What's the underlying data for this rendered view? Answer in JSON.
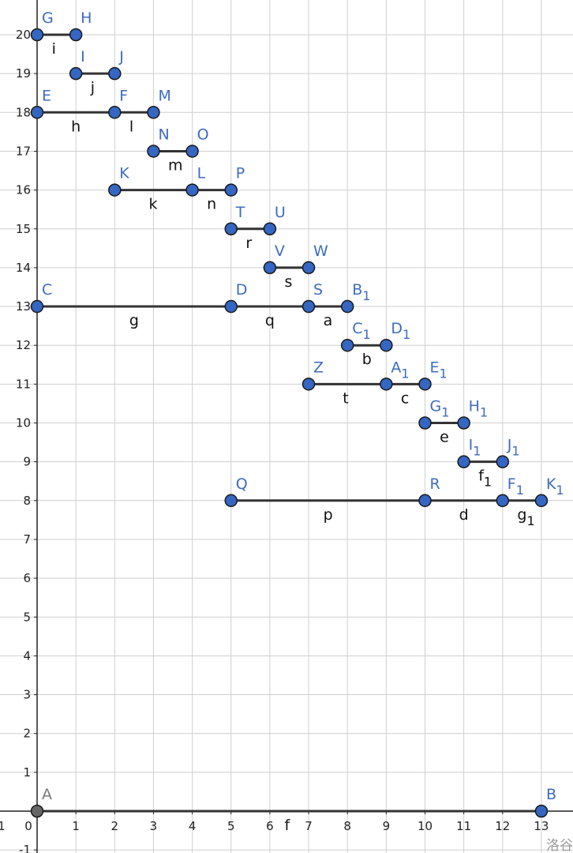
{
  "colors": {
    "grid": "#cfcfcf",
    "axis": "#222222",
    "segment": "#333333",
    "point": "#3466c2",
    "point_gray": "#666666",
    "point_label": "#3d6cc0",
    "segment_label": "#111111"
  },
  "axes": {
    "xlim": [
      -1,
      13.6
    ],
    "ylim": [
      -1.1,
      20.9
    ],
    "x_ticks": [
      0,
      1,
      2,
      3,
      4,
      5,
      6,
      7,
      8,
      9,
      10,
      11,
      12,
      13
    ],
    "y_ticks": [
      -1,
      1,
      2,
      3,
      4,
      5,
      6,
      7,
      8,
      9,
      10,
      11,
      12,
      13,
      14,
      15,
      16,
      17,
      18,
      19,
      20
    ],
    "grid": true
  },
  "points": [
    {
      "name": "A",
      "sub": "",
      "x": 0,
      "y": 0,
      "color": "gray"
    },
    {
      "name": "B",
      "sub": "",
      "x": 13,
      "y": 0
    },
    {
      "name": "G",
      "sub": "",
      "x": 0,
      "y": 20
    },
    {
      "name": "H",
      "sub": "",
      "x": 1,
      "y": 20
    },
    {
      "name": "I",
      "sub": "",
      "x": 1,
      "y": 19
    },
    {
      "name": "J",
      "sub": "",
      "x": 2,
      "y": 19
    },
    {
      "name": "E",
      "sub": "",
      "x": 0,
      "y": 18
    },
    {
      "name": "F",
      "sub": "",
      "x": 2,
      "y": 18
    },
    {
      "name": "M",
      "sub": "",
      "x": 3,
      "y": 18
    },
    {
      "name": "N",
      "sub": "",
      "x": 3,
      "y": 17
    },
    {
      "name": "O",
      "sub": "",
      "x": 4,
      "y": 17
    },
    {
      "name": "K",
      "sub": "",
      "x": 2,
      "y": 16
    },
    {
      "name": "L",
      "sub": "",
      "x": 4,
      "y": 16
    },
    {
      "name": "P",
      "sub": "",
      "x": 5,
      "y": 16
    },
    {
      "name": "T",
      "sub": "",
      "x": 5,
      "y": 15
    },
    {
      "name": "U",
      "sub": "",
      "x": 6,
      "y": 15
    },
    {
      "name": "V",
      "sub": "",
      "x": 6,
      "y": 14
    },
    {
      "name": "W",
      "sub": "",
      "x": 7,
      "y": 14
    },
    {
      "name": "C",
      "sub": "",
      "x": 0,
      "y": 13
    },
    {
      "name": "D",
      "sub": "",
      "x": 5,
      "y": 13
    },
    {
      "name": "S",
      "sub": "",
      "x": 7,
      "y": 13
    },
    {
      "name": "B",
      "sub": "1",
      "x": 8,
      "y": 13
    },
    {
      "name": "C",
      "sub": "1",
      "x": 8,
      "y": 12
    },
    {
      "name": "D",
      "sub": "1",
      "x": 9,
      "y": 12
    },
    {
      "name": "Z",
      "sub": "",
      "x": 7,
      "y": 11
    },
    {
      "name": "A",
      "sub": "1",
      "x": 9,
      "y": 11
    },
    {
      "name": "E",
      "sub": "1",
      "x": 10,
      "y": 11
    },
    {
      "name": "G",
      "sub": "1",
      "x": 10,
      "y": 10
    },
    {
      "name": "H",
      "sub": "1",
      "x": 11,
      "y": 10
    },
    {
      "name": "I",
      "sub": "1",
      "x": 11,
      "y": 9
    },
    {
      "name": "J",
      "sub": "1",
      "x": 12,
      "y": 9
    },
    {
      "name": "Q",
      "sub": "",
      "x": 5,
      "y": 8
    },
    {
      "name": "R",
      "sub": "",
      "x": 10,
      "y": 8
    },
    {
      "name": "F",
      "sub": "1",
      "x": 12,
      "y": 8
    },
    {
      "name": "K",
      "sub": "1",
      "x": 13,
      "y": 8
    }
  ],
  "segments": [
    {
      "name": "f",
      "sub": "",
      "from": [
        0,
        0
      ],
      "to": [
        13,
        0
      ]
    },
    {
      "name": "i",
      "sub": "",
      "from": [
        0,
        20
      ],
      "to": [
        1,
        20
      ]
    },
    {
      "name": "j",
      "sub": "",
      "from": [
        1,
        19
      ],
      "to": [
        2,
        19
      ]
    },
    {
      "name": "h",
      "sub": "",
      "from": [
        0,
        18
      ],
      "to": [
        2,
        18
      ]
    },
    {
      "name": "l",
      "sub": "",
      "from": [
        2,
        18
      ],
      "to": [
        3,
        18
      ]
    },
    {
      "name": "m",
      "sub": "",
      "from": [
        3,
        17
      ],
      "to": [
        4,
        17
      ]
    },
    {
      "name": "k",
      "sub": "",
      "from": [
        2,
        16
      ],
      "to": [
        4,
        16
      ]
    },
    {
      "name": "n",
      "sub": "",
      "from": [
        4,
        16
      ],
      "to": [
        5,
        16
      ]
    },
    {
      "name": "r",
      "sub": "",
      "from": [
        5,
        15
      ],
      "to": [
        6,
        15
      ]
    },
    {
      "name": "s",
      "sub": "",
      "from": [
        6,
        14
      ],
      "to": [
        7,
        14
      ]
    },
    {
      "name": "g",
      "sub": "",
      "from": [
        0,
        13
      ],
      "to": [
        5,
        13
      ]
    },
    {
      "name": "q",
      "sub": "",
      "from": [
        5,
        13
      ],
      "to": [
        7,
        13
      ]
    },
    {
      "name": "a",
      "sub": "",
      "from": [
        7,
        13
      ],
      "to": [
        8,
        13
      ]
    },
    {
      "name": "b",
      "sub": "",
      "from": [
        8,
        12
      ],
      "to": [
        9,
        12
      ]
    },
    {
      "name": "t",
      "sub": "",
      "from": [
        7,
        11
      ],
      "to": [
        9,
        11
      ]
    },
    {
      "name": "c",
      "sub": "",
      "from": [
        9,
        11
      ],
      "to": [
        10,
        11
      ]
    },
    {
      "name": "e",
      "sub": "",
      "from": [
        10,
        10
      ],
      "to": [
        11,
        10
      ]
    },
    {
      "name": "f",
      "sub": "1",
      "from": [
        11,
        9
      ],
      "to": [
        12,
        9
      ]
    },
    {
      "name": "p",
      "sub": "",
      "from": [
        5,
        8
      ],
      "to": [
        10,
        8
      ]
    },
    {
      "name": "d",
      "sub": "",
      "from": [
        10,
        8
      ],
      "to": [
        12,
        8
      ]
    },
    {
      "name": "g",
      "sub": "1",
      "from": [
        12,
        8
      ],
      "to": [
        13,
        8
      ]
    }
  ],
  "watermark": "洛谷"
}
